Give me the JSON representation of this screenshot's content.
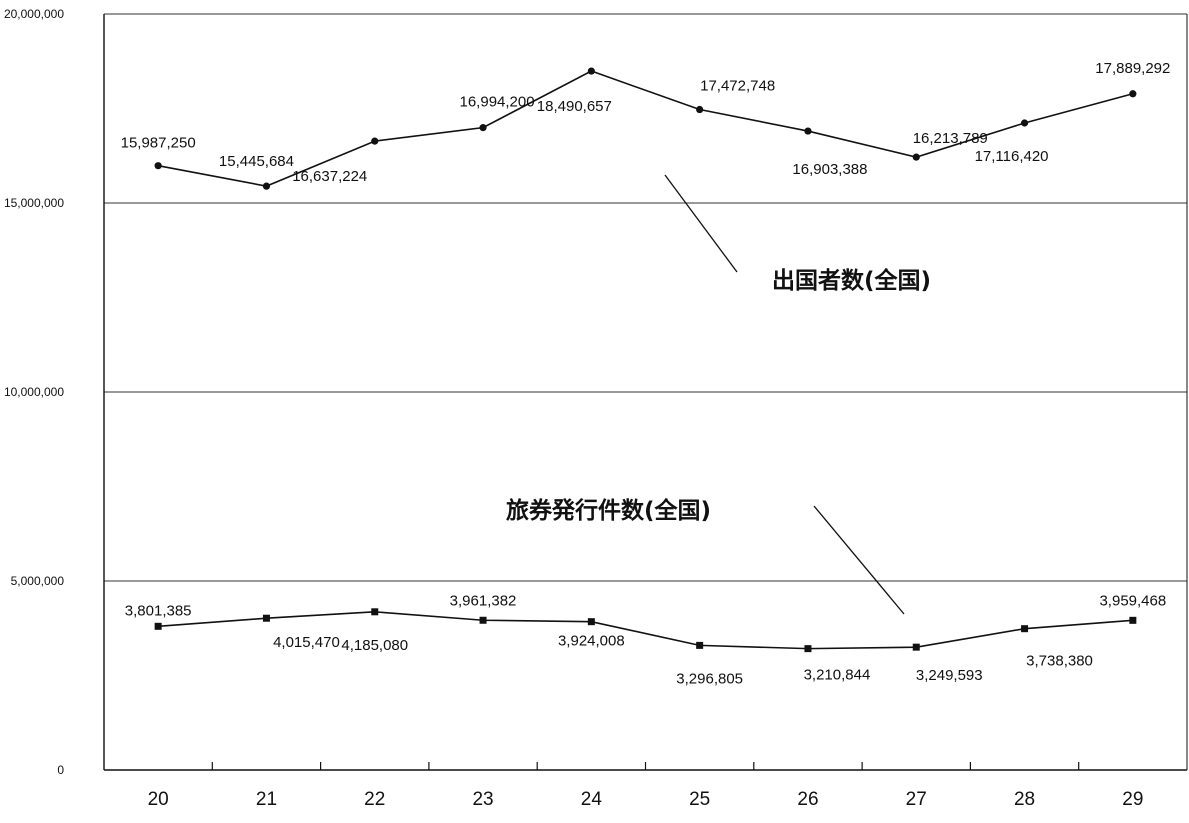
{
  "chart_data": {
    "type": "line",
    "title": "",
    "xlabel": "",
    "ylabel": "",
    "categories": [
      "20",
      "21",
      "22",
      "23",
      "24",
      "25",
      "26",
      "27",
      "28",
      "29"
    ],
    "ylim": [
      0,
      20000000
    ],
    "y_ticks": [
      {
        "value": 0,
        "label": "0"
      },
      {
        "value": 5000000,
        "label": "5,000,000"
      },
      {
        "value": 10000000,
        "label": "10,000,000"
      },
      {
        "value": 15000000,
        "label": "15,000,000"
      },
      {
        "value": 20000000,
        "label": "20,000,000"
      }
    ],
    "grid": "horizontal",
    "series": [
      {
        "name": "出国者数(全国)",
        "marker": "circle",
        "values": [
          15987250,
          15445684,
          16637224,
          16994200,
          18490657,
          17472748,
          16903388,
          16213789,
          17116420,
          17889292
        ],
        "labels": [
          "15,987,250",
          "15,445,684",
          "16,637,224",
          "16,994,200",
          "18,490,657",
          "17,472,748",
          "16,903,388",
          "16,213,789",
          "17,116,420",
          "17,889,292"
        ]
      },
      {
        "name": "旅券発行件数(全国)",
        "marker": "square",
        "values": [
          3801385,
          4015470,
          4185080,
          3961382,
          3924008,
          3296805,
          3210844,
          3249593,
          3738380,
          3959468
        ],
        "labels": [
          "3,801,385",
          "4,015,470",
          "4,185,080",
          "3,961,382",
          "3,924,008",
          "3,296,805",
          "3,210,844",
          "3,249,593",
          "3,738,380",
          "3,959,468"
        ]
      }
    ],
    "colors": {
      "line": "#111111",
      "grid": "#333333",
      "axis": "#111111",
      "background": "#ffffff"
    }
  }
}
